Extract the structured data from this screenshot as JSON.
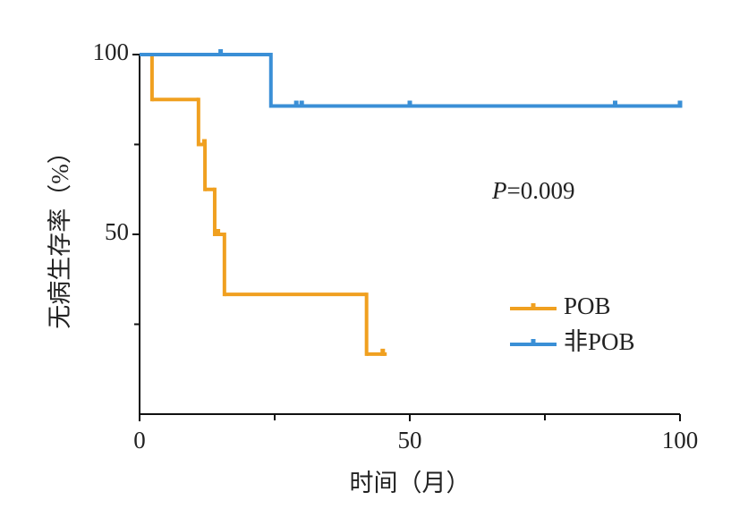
{
  "chart_data": {
    "type": "kaplan-meier",
    "x_label": "时间（月）",
    "y_label": "无病生存率（%）",
    "annotation_italic": "P",
    "annotation_value": "=0.009",
    "xlim": [
      0,
      100
    ],
    "ylim": [
      0,
      100
    ],
    "xticks": [
      0,
      50,
      100
    ],
    "yticks": [
      50,
      100
    ],
    "xminor": [
      25,
      75
    ],
    "yminor": [
      25,
      75
    ],
    "series": [
      {
        "name": "POB",
        "color": "#f0a020",
        "x": [
          0,
          2.3,
          10.9,
          12.1,
          13.9,
          15.7,
          42,
          45.4
        ],
        "values": [
          100,
          87.5,
          75,
          62.5,
          50,
          33.3,
          16.7,
          16.7
        ],
        "censor_x": [
          12,
          14.5,
          45
        ],
        "censor_values": [
          75,
          50,
          16.7
        ]
      },
      {
        "name": "非POB",
        "color": "#3a8fd6",
        "x": [
          0,
          24.3,
          100
        ],
        "values": [
          100,
          85.7,
          85.7
        ],
        "censor_x": [
          15,
          29,
          30,
          50,
          88,
          100
        ],
        "censor_values": [
          100,
          85.7,
          85.7,
          85.7,
          85.7,
          85.7
        ]
      }
    ]
  }
}
